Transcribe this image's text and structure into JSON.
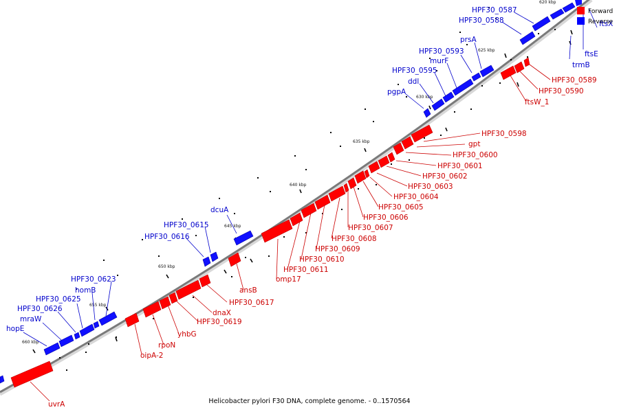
{
  "caption": "Helicobacter pylori F30 DNA, complete genome. - 0..1570564",
  "legend": [
    {
      "label": "Forward",
      "color": "#ff0000"
    },
    {
      "label": "Reverse",
      "color": "#0000ff"
    }
  ],
  "colors": {
    "forward": "#ff0000",
    "forward_dark": "#b80000",
    "reverse": "#1010ff",
    "reverse_dark": "#0000a8",
    "forward_label": "#cc0000",
    "reverse_label": "#0000cc",
    "backbone": "#888888",
    "tick": "#000000"
  },
  "ticks": [
    "620 kbp",
    "625 kbp",
    "630 kbp",
    "635 kbp",
    "640 kbp",
    "645 kbp",
    "650 kbp",
    "655 kbp",
    "660 kbp"
  ],
  "reverse_genes": [
    "HPF30_0587",
    "HPF30_0588",
    "prsA",
    "HPF30_0593",
    "murF",
    "HPF30_0595",
    "ddl",
    "pgpA",
    "dcuA",
    "HPF30_0615",
    "HPF30_0616",
    "HPF30_0623",
    "homB",
    "HPF30_0625",
    "HPF30_0626",
    "mraW",
    "hopE",
    "ftsX",
    "ftsE",
    "trmB"
  ],
  "forward_genes": [
    "HPF30_0589",
    "HPF30_0590",
    "ftsW_1",
    "HPF30_0598",
    "gpt",
    "HPF30_0600",
    "HPF30_0601",
    "HPF30_0602",
    "HPF30_0603",
    "HPF30_0604",
    "HPF30_0605",
    "HPF30_0606",
    "HPF30_0607",
    "HPF30_0608",
    "HPF30_0609",
    "HPF30_0610",
    "HPF30_0611",
    "omp17",
    "ansB",
    "HPF30_0617",
    "dnaX",
    "HPF30_0619",
    "yhbG",
    "rpoN",
    "oipA-2",
    "uvrA"
  ]
}
